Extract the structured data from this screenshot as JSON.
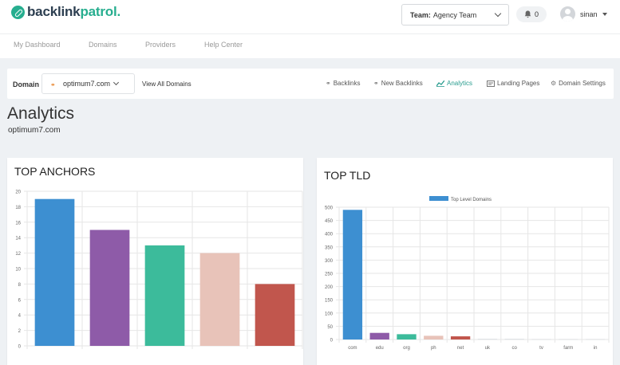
{
  "header": {
    "logo_prefix": "backlink",
    "logo_suffix": "patrol.",
    "team_label": "Team:",
    "team_value": "Agency Team",
    "notifications_count": "0",
    "username": "sinan"
  },
  "nav": {
    "items": [
      "My Dashboard",
      "Domains",
      "Providers",
      "Help Center"
    ]
  },
  "domain_bar": {
    "label": "Domain",
    "selected_domain": "optimum7.com",
    "view_all": "View All Domains",
    "tabs": [
      {
        "label": "Backlinks",
        "icon": "link-icon",
        "active": false
      },
      {
        "label": "New Backlinks",
        "icon": "link-icon",
        "active": false
      },
      {
        "label": "Analytics",
        "icon": "line-chart-icon",
        "active": true
      },
      {
        "label": "Landing Pages",
        "icon": "page-icon",
        "active": false
      },
      {
        "label": "Domain Settings",
        "icon": "gear-icon",
        "active": false
      }
    ]
  },
  "page": {
    "title": "Analytics",
    "subtitle": "optimum7.com"
  },
  "cards": {
    "top_anchors_title": "TOP ANCHORS",
    "top_tld_title": "TOP TLD"
  },
  "colors": {
    "accent": "#27ae8f",
    "active_tab": "#2a9d8f"
  },
  "chart_data": [
    {
      "type": "bar",
      "title": "",
      "categories": [
        "",
        "",
        "",
        "",
        ""
      ],
      "values": [
        19,
        15,
        13,
        12,
        8
      ],
      "colors": [
        "#3d8fd1",
        "#8e5ba8",
        "#3cbb9b",
        "#e8c3b9",
        "#c1564d"
      ],
      "ylim": [
        0,
        20
      ],
      "yticks": [
        0,
        2,
        4,
        6,
        8,
        10,
        12,
        14,
        16,
        18,
        20
      ],
      "grid": true
    },
    {
      "type": "bar",
      "title": "",
      "categories": [
        "com",
        "edu",
        "org",
        "ph",
        "net",
        "uk",
        "co",
        "tv",
        "farm",
        "in"
      ],
      "series": [
        {
          "name": "Top Level Domains",
          "values": [
            490,
            25,
            20,
            14,
            12,
            2,
            2,
            1,
            1,
            1
          ]
        }
      ],
      "colors": [
        "#3d8fd1",
        "#8e5ba8",
        "#3cbb9b",
        "#e8c3b9",
        "#c1564d",
        "#cfd4d9",
        "#cfd4d9",
        "#cfd4d9",
        "#cfd4d9",
        "#cfd4d9"
      ],
      "ylim": [
        0,
        500
      ],
      "yticks": [
        0,
        50,
        100,
        150,
        200,
        250,
        300,
        350,
        400,
        450,
        500
      ],
      "legend": "top-center",
      "grid": true
    }
  ]
}
